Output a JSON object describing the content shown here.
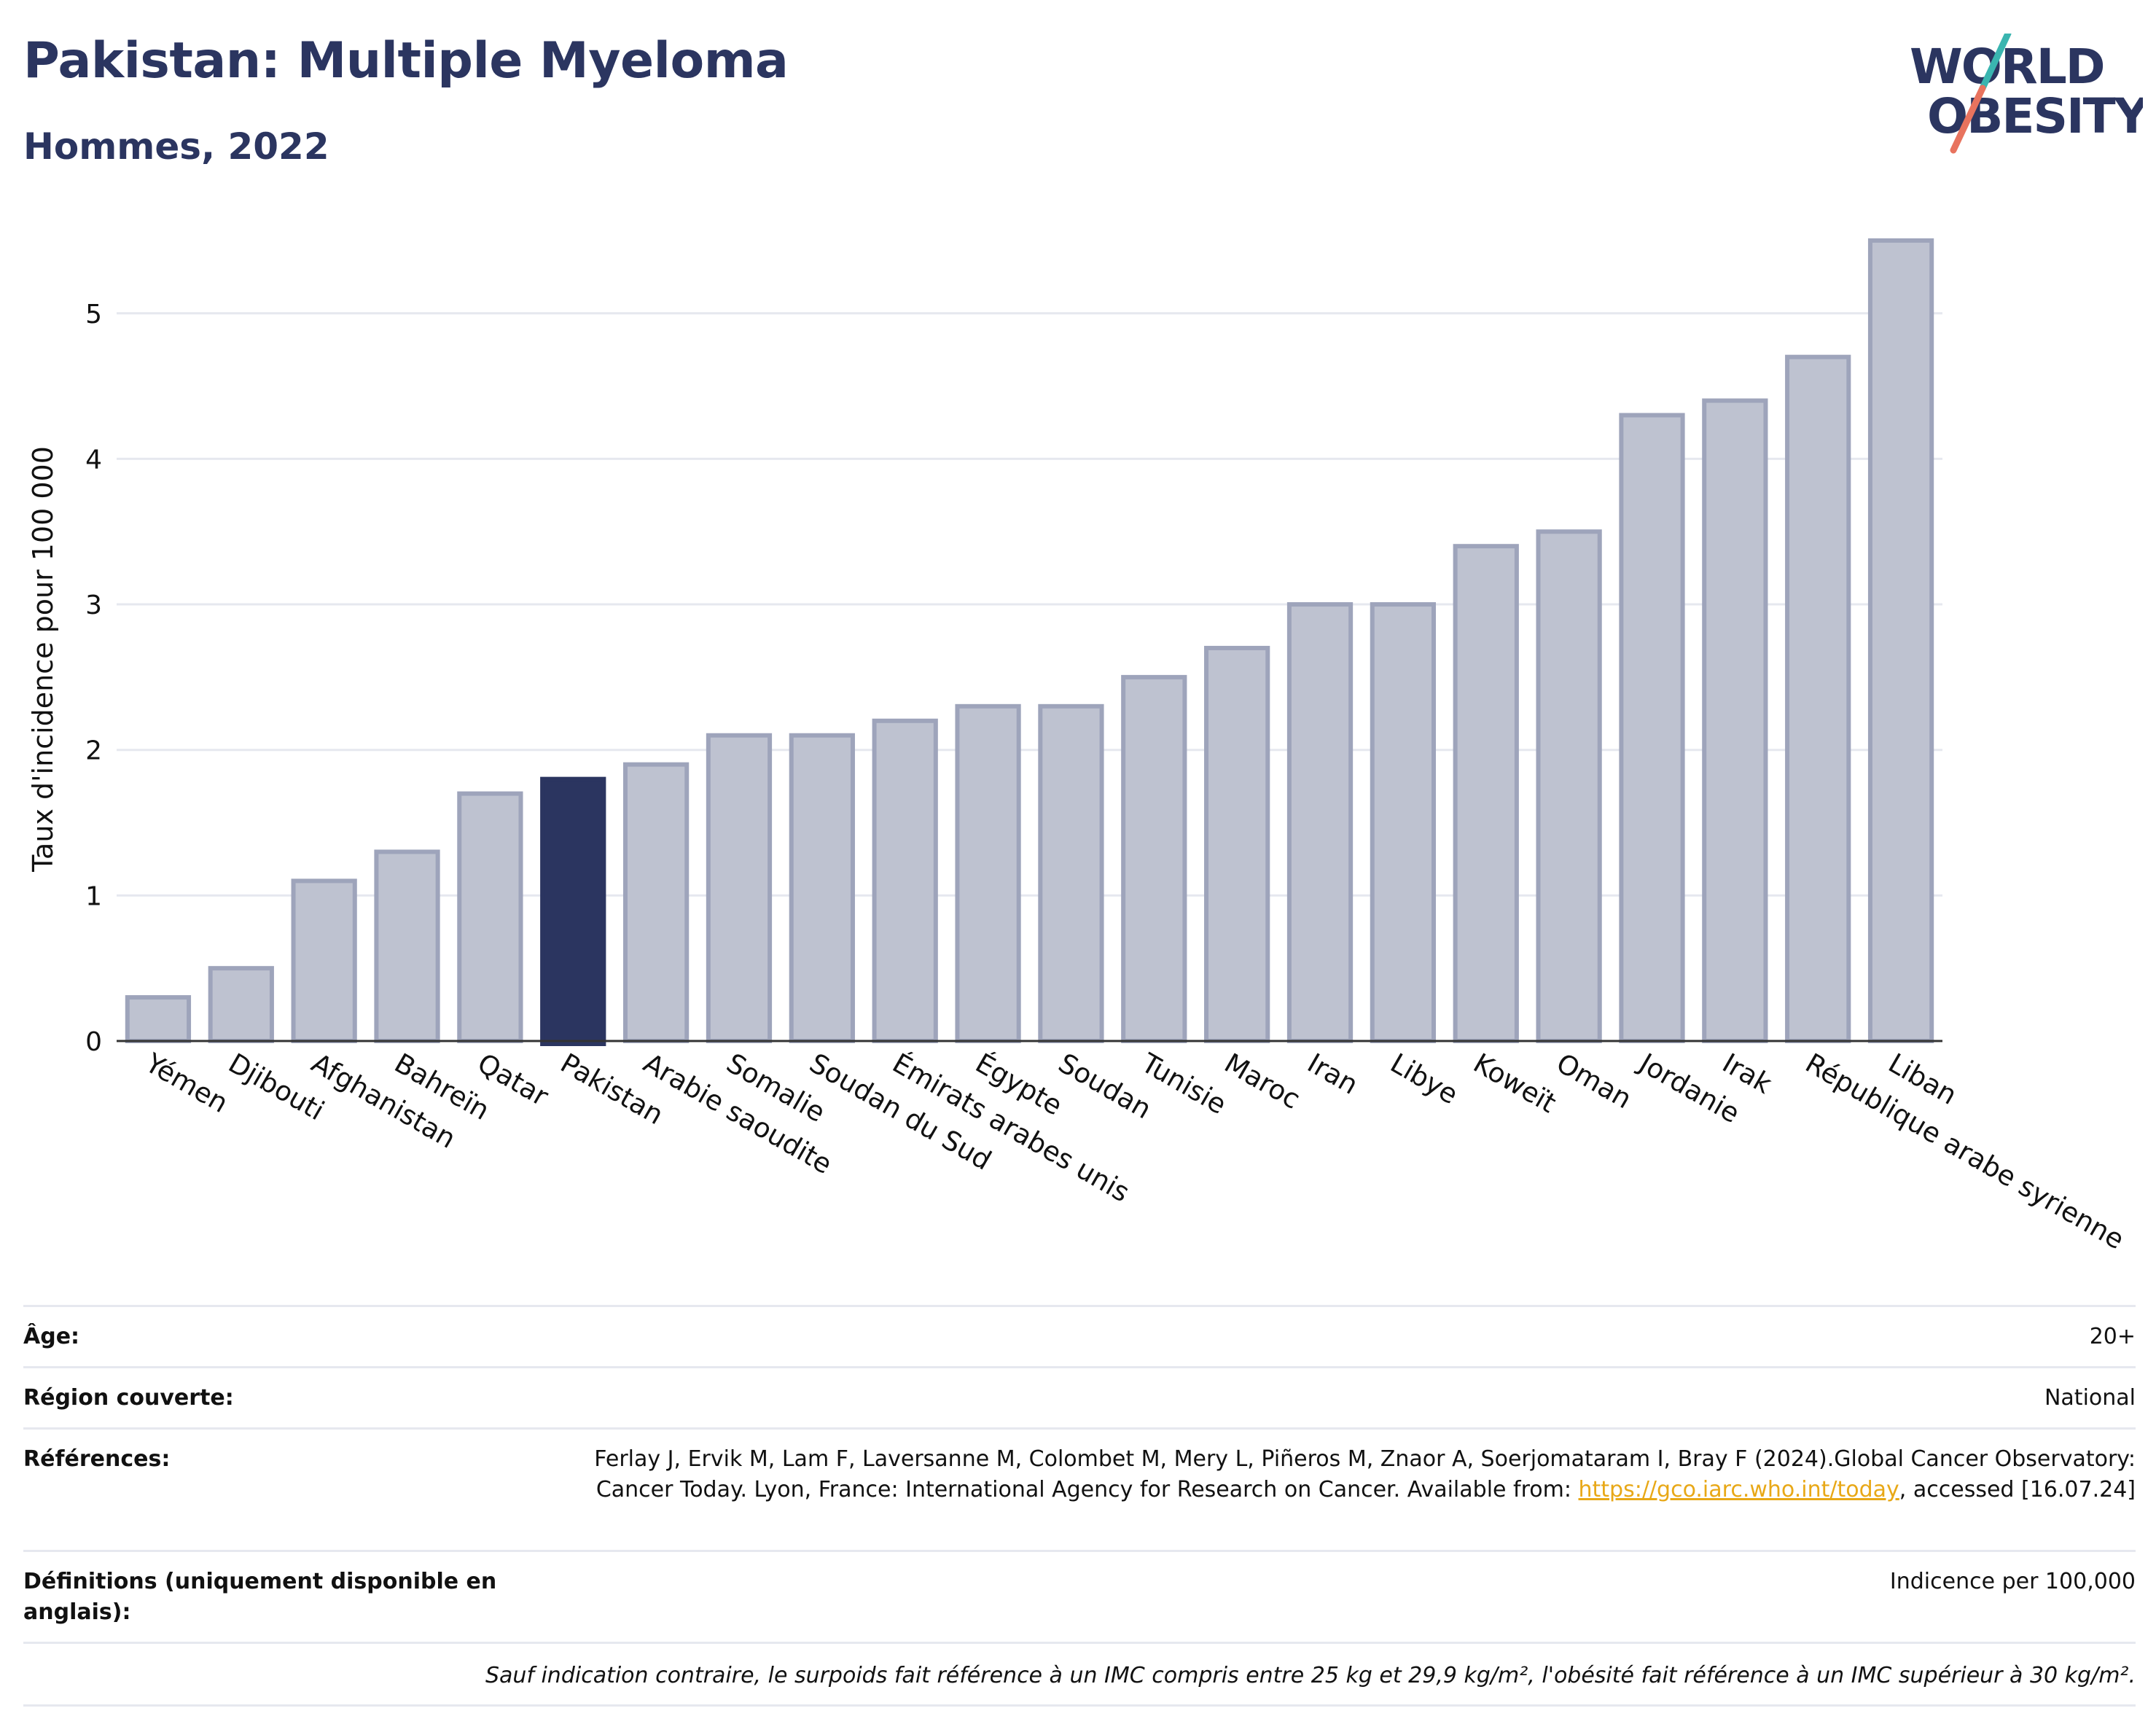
{
  "header": {
    "title": "Pakistan: Multiple Myeloma",
    "subtitle": "Hommes, 2022",
    "logo_line1": "WORLD",
    "logo_line2": "OBESITY"
  },
  "colors": {
    "highlight": "#2b3560",
    "bar_fill": "#bec2d0",
    "bar_stroke": "#9ea4bb",
    "logo_teal": "#3ab5b0",
    "logo_coral": "#e8735e"
  },
  "chart_data": {
    "type": "bar",
    "ylabel": "Taux d'incidence pour 100 000",
    "xlabel": "",
    "ylim": [
      0,
      5.65
    ],
    "yticks": [
      0,
      1,
      2,
      3,
      4,
      5
    ],
    "grid": true,
    "highlight_category": "Pakistan",
    "categories": [
      "Yémen",
      "Djibouti",
      "Afghanistan",
      "Bahreïn",
      "Qatar",
      "Pakistan",
      "Arabie saoudite",
      "Somalie",
      "Soudan du Sud",
      "Émirats arabes unis",
      "Égypte",
      "Soudan",
      "Tunisie",
      "Maroc",
      "Iran",
      "Libye",
      "Koweït",
      "Oman",
      "Jordanie",
      "Irak",
      "République arabe syrienne",
      "Liban"
    ],
    "values": [
      0.3,
      0.5,
      1.1,
      1.3,
      1.7,
      1.8,
      1.9,
      2.1,
      2.1,
      2.2,
      2.3,
      2.3,
      2.5,
      2.7,
      3.0,
      3.0,
      3.4,
      3.5,
      4.3,
      4.4,
      4.7,
      5.5
    ]
  },
  "meta": {
    "age_label": "Âge:",
    "age_value": "20+",
    "region_label": "Région couverte:",
    "region_value": "National",
    "refs_label": "Références:",
    "refs_text": "Ferlay J, Ervik M, Lam F, Laversanne M, Colombet M, Mery L, Piñeros M, Znaor A, Soerjomataram I, Bray F (2024).Global Cancer Observatory: Cancer Today. Lyon, France: International Agency for Research on Cancer. Available from:",
    "refs_link": "https://gco.iarc.who.int/today",
    "refs_tail": ", accessed [16.07.24]",
    "def_label": "Définitions (uniquement disponible en anglais):",
    "def_value": "Indicence per 100,000",
    "note": "Sauf indication contraire, le surpoids fait référence à un IMC compris entre 25 kg et 29,9 kg/m², l'obésité fait référence à un IMC supérieur à 30 kg/m²."
  }
}
